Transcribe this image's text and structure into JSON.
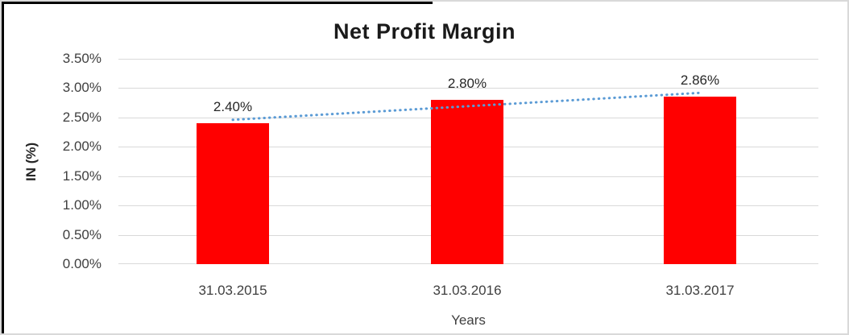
{
  "figure": {
    "background": "#FFFFFF",
    "outer_border_color": "#D9D9D9",
    "accent_border_color": "#000000",
    "grid_color": "#D9D9D9"
  },
  "chart_data": {
    "type": "bar",
    "title": "Net Profit Margin",
    "xlabel": "Years",
    "ylabel": "IN (%)",
    "categories": [
      "31.03.2015",
      "31.03.2016",
      "31.03.2017"
    ],
    "values": [
      2.4,
      2.8,
      2.86
    ],
    "data_labels": [
      "2.40%",
      "2.80%",
      "2.86%"
    ],
    "ytick_labels": [
      "3.50%",
      "3.00%",
      "2.50%",
      "2.00%",
      "1.50%",
      "1.00%",
      "0.50%",
      "0.00%"
    ],
    "ylim": [
      0,
      3.5
    ],
    "ytick_step": 0.5,
    "grid": true,
    "legend": false,
    "bar_color": "#FF0000",
    "trendline": {
      "type": "linear",
      "style": "dotted",
      "color": "#5B9BD5",
      "start_value": 2.46,
      "end_value": 2.92
    }
  }
}
